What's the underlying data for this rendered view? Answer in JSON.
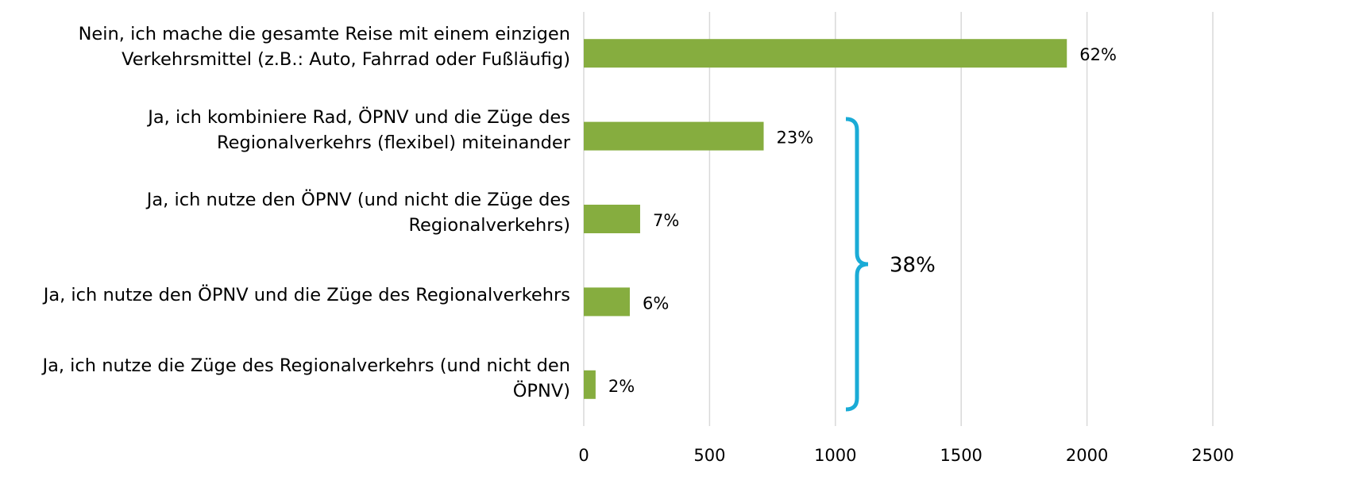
{
  "chart_data": {
    "type": "hbar",
    "categories": [
      "Nein, ich mache die gesamte Reise mit einem einzigen Verkehrsmittel (z.B.: Auto, Fahrrad oder Fußläufig)",
      "Ja, ich kombiniere Rad, ÖPNV und die Züge des Regionalverkehrs (flexibel) miteinander",
      "Ja, ich nutze den ÖPNV (und nicht die Züge des Regionalverkehrs)",
      "Ja, ich nutze den ÖPNV und die Züge des Regionalverkehrs",
      "Ja, ich nutze die Züge des Regionalverkehrs (und nicht den ÖPNV)"
    ],
    "values": [
      1920,
      715,
      224,
      183,
      47
    ],
    "value_labels": [
      "62%",
      "23%",
      "7%",
      "6%",
      "2%"
    ],
    "color": "#86ad3f",
    "xlim": [
      0,
      2500
    ],
    "xticks": [
      0,
      500,
      1000,
      1500,
      2000,
      2500
    ],
    "grid": true,
    "annotation": "38%",
    "annotation_color": "#1aabd6"
  }
}
